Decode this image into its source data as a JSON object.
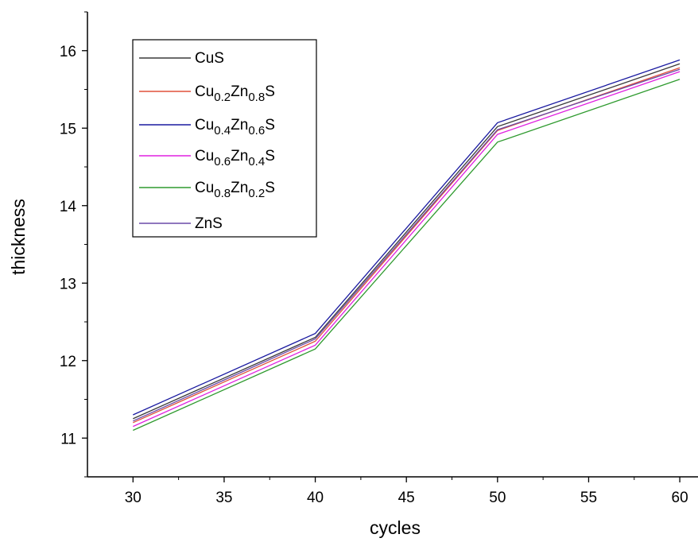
{
  "chart_data": {
    "type": "line",
    "title": "",
    "xlabel": "cycles",
    "ylabel": "thickness",
    "x": [
      30,
      40,
      50,
      60
    ],
    "xlim": [
      27.5,
      61
    ],
    "ylim": [
      10.5,
      16.5
    ],
    "xticks": [
      30,
      35,
      40,
      45,
      50,
      55,
      60
    ],
    "yticks": [
      11,
      12,
      13,
      14,
      15,
      16
    ],
    "grid": false,
    "legend_position": "top-left",
    "series": [
      {
        "name": "CuS",
        "legend": {
          "base": "CuS",
          "parts": []
        },
        "color": "#3a3a3a",
        "values": [
          11.25,
          12.3,
          15.02,
          15.83
        ]
      },
      {
        "name": "Cu0.2Zn0.8S",
        "legend": {
          "base": "Cu",
          "parts": [
            [
              "0.2",
              "Zn"
            ],
            [
              "0.8",
              "S"
            ]
          ]
        },
        "color": "#e0503a",
        "values": [
          11.2,
          12.25,
          14.97,
          15.78
        ]
      },
      {
        "name": "Cu0.4Zn0.6S",
        "legend": {
          "base": "Cu",
          "parts": [
            [
              "0.4",
              "Zn"
            ],
            [
              "0.6",
              "S"
            ]
          ]
        },
        "color": "#1a1aa0",
        "values": [
          11.3,
          12.35,
          15.07,
          15.88
        ]
      },
      {
        "name": "Cu0.6Zn0.4S",
        "legend": {
          "base": "Cu",
          "parts": [
            [
              "0.6",
              "Zn"
            ],
            [
              "0.4",
              "S"
            ]
          ]
        },
        "color": "#e020e0",
        "values": [
          11.15,
          12.2,
          14.92,
          15.73
        ]
      },
      {
        "name": "Cu0.8Zn0.2S",
        "legend": {
          "base": "Cu",
          "parts": [
            [
              "0.8",
              "Zn"
            ],
            [
              "0.2",
              "S"
            ]
          ]
        },
        "color": "#2e9a2e",
        "values": [
          11.1,
          12.15,
          14.82,
          15.63
        ]
      },
      {
        "name": "ZnS",
        "legend": {
          "base": "ZnS",
          "parts": []
        },
        "color": "#6a4aa8",
        "values": [
          11.22,
          12.28,
          14.98,
          15.76
        ]
      }
    ]
  }
}
